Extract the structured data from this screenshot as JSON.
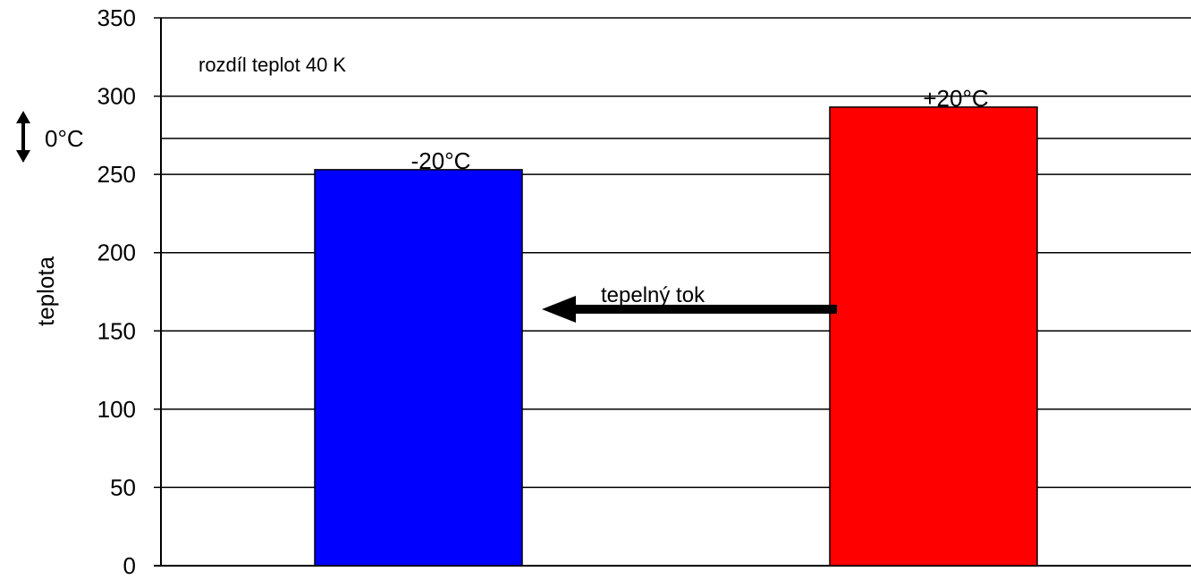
{
  "chart_data": {
    "type": "bar",
    "categories": [
      "",
      ""
    ],
    "values": [
      253,
      293
    ],
    "bar_labels": [
      "-20°C",
      "+20°C"
    ],
    "colors": [
      "#0000ff",
      "#ff0000"
    ],
    "ylabel": "teplota",
    "xlabel": "",
    "ylim": [
      0,
      350
    ],
    "yticks": [
      0,
      50,
      100,
      150,
      200,
      250,
      300,
      350
    ],
    "grid": true,
    "extra_gridline": 273,
    "annotation": "rozdíl teplot 40 K",
    "arrow_label": "tepelný tok",
    "offset_label": "0°C"
  }
}
